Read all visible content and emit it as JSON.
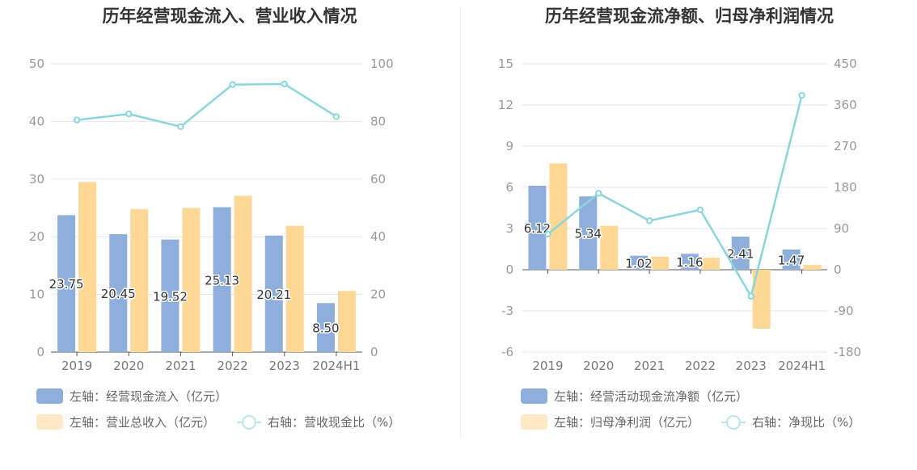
{
  "colors": {
    "bar_blue": "#8eaedc",
    "bar_orange": "#ffd896",
    "line_teal": "#8ad6dc",
    "legend_orange": "#ffe9c6",
    "legend_line": "#b7e6ea",
    "grid": "#e2e6f0",
    "axis": "#555555"
  },
  "chart_data": [
    {
      "type": "bar",
      "title": "历年经营现金流入、营业收入情况",
      "categories": [
        "2019",
        "2020",
        "2021",
        "2022",
        "2023",
        "2024H1"
      ],
      "series": [
        {
          "name": "左轴：经营现金流入（亿元）",
          "axis": "left",
          "type": "bar",
          "color": "#8eaedc",
          "values": [
            23.75,
            20.45,
            19.52,
            25.13,
            20.21,
            8.5
          ],
          "labels": [
            "23.75",
            "20.45",
            "19.52",
            "25.13",
            "20.21",
            "8.50"
          ]
        },
        {
          "name": "左轴：营业总收入（亿元）",
          "axis": "left",
          "type": "bar",
          "color": "#ffd896",
          "values": [
            29.5,
            24.8,
            25.0,
            27.1,
            21.9,
            10.6
          ]
        },
        {
          "name": "右轴：营收现金比（%）",
          "axis": "right",
          "type": "line",
          "color": "#8ad6dc",
          "values": [
            80.5,
            82.6,
            78.2,
            92.8,
            93.0,
            81.7
          ]
        }
      ],
      "left_axis": {
        "min": 0,
        "max": 50,
        "ticks": [
          0,
          10,
          20,
          30,
          40,
          50
        ]
      },
      "right_axis": {
        "min": 0,
        "max": 100,
        "ticks": [
          0,
          20,
          40,
          60,
          80,
          100
        ]
      },
      "grid": true,
      "legend_position": "bottom"
    },
    {
      "type": "bar",
      "title": "历年经营现金流净额、归母净利润情况",
      "categories": [
        "2019",
        "2020",
        "2021",
        "2022",
        "2023",
        "2024H1"
      ],
      "series": [
        {
          "name": "左轴：经营活动现金流净额（亿元）",
          "axis": "left",
          "type": "bar",
          "color": "#8eaedc",
          "values": [
            6.12,
            5.34,
            1.02,
            1.16,
            2.41,
            1.47
          ],
          "labels": [
            "6.12",
            "5.34",
            "1.02",
            "1.16",
            "2.41",
            "1.47"
          ]
        },
        {
          "name": "左轴：归母净利润（亿元）",
          "axis": "left",
          "type": "bar",
          "color": "#ffd896",
          "values": [
            7.75,
            3.2,
            0.95,
            0.88,
            -4.3,
            0.35
          ]
        },
        {
          "name": "右轴：净现比（%）",
          "axis": "right",
          "type": "line",
          "color": "#8ad6dc",
          "values": [
            78,
            167,
            107,
            131,
            -58,
            381
          ]
        }
      ],
      "left_axis": {
        "min": -6,
        "max": 15,
        "ticks": [
          -6,
          -3,
          0,
          3,
          6,
          9,
          12,
          15
        ]
      },
      "right_axis": {
        "min": -180,
        "max": 450,
        "ticks": [
          -180,
          -90,
          0,
          90,
          180,
          270,
          360,
          450
        ]
      },
      "grid": true,
      "legend_position": "bottom"
    }
  ],
  "legends": [
    [
      {
        "label": "左轴：经营现金流入（亿元）",
        "kind": "rect",
        "color": "#8eaedc"
      },
      {
        "label": "左轴：营业总收入（亿元）",
        "kind": "rect",
        "color": "#ffe9c6"
      },
      {
        "label": "右轴：营收现金比（%）",
        "kind": "line",
        "color": "#b7e6ea"
      }
    ],
    [
      {
        "label": "左轴：经营活动现金流净额（亿元）",
        "kind": "rect",
        "color": "#8eaedc"
      },
      {
        "label": "左轴：归母净利润（亿元）",
        "kind": "rect",
        "color": "#ffe9c6"
      },
      {
        "label": "右轴：净现比（%）",
        "kind": "line",
        "color": "#b7e6ea"
      }
    ]
  ]
}
